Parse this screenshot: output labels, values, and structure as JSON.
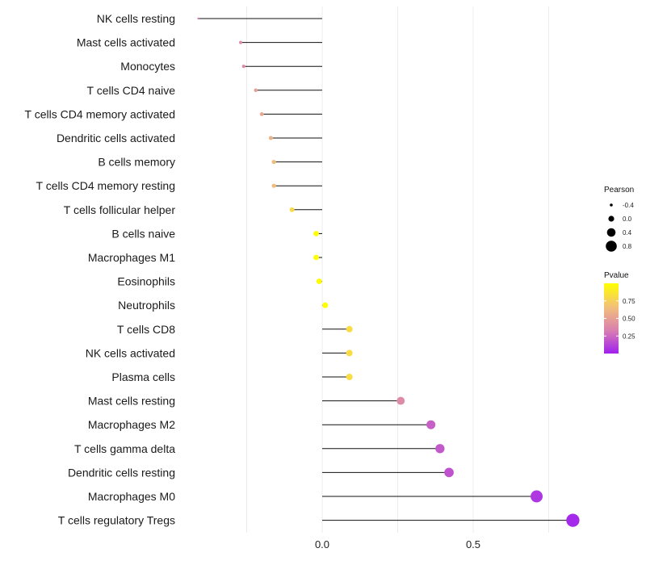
{
  "chart_data": {
    "type": "lollipop",
    "title": "",
    "xlabel": "",
    "ylabel": "",
    "xlim": [
      -0.43,
      0.85
    ],
    "x_ticks": [
      0.0,
      0.5
    ],
    "x_tick_labels": [
      "0.0",
      "0.5"
    ],
    "grid": true,
    "categories": [
      "NK cells resting",
      "Mast cells activated",
      "Monocytes",
      "T cells CD4 naive",
      "T cells CD4 memory activated",
      "Dendritic cells activated",
      "B cells memory",
      "T cells CD4 memory resting",
      "T cells follicular helper",
      "B cells naive",
      "Macrophages M1",
      "Eosinophils",
      "Neutrophils",
      "T cells CD8",
      "NK cells activated",
      "Plasma cells",
      "Mast cells resting",
      "Macrophages M2",
      "T cells gamma delta",
      "Dendritic cells resting",
      "Macrophages M0",
      "T cells regulatory  Tregs"
    ],
    "pearson": [
      -0.41,
      -0.27,
      -0.26,
      -0.22,
      -0.2,
      -0.17,
      -0.16,
      -0.16,
      -0.1,
      -0.02,
      -0.02,
      -0.01,
      0.01,
      0.09,
      0.09,
      0.09,
      0.26,
      0.36,
      0.39,
      0.42,
      0.71,
      0.83
    ],
    "pvalue": [
      0.3,
      0.4,
      0.4,
      0.5,
      0.55,
      0.6,
      0.65,
      0.65,
      0.8,
      0.99,
      0.99,
      0.99,
      0.99,
      0.82,
      0.82,
      0.82,
      0.4,
      0.22,
      0.2,
      0.18,
      0.08,
      0.03
    ],
    "size_legend": {
      "title": "Pearson",
      "values": [
        -0.4,
        0.0,
        0.4,
        0.8
      ],
      "labels": [
        "-0.4",
        "0.0",
        "0.4",
        "0.8"
      ]
    },
    "color_legend": {
      "title": "Pvalue",
      "range": [
        0.0,
        1.0
      ],
      "ticks": [
        0.25,
        0.5,
        0.75
      ],
      "tick_labels": [
        "0.25",
        "0.50",
        "0.75"
      ],
      "colors": [
        "#A020F0",
        "#D97FB0",
        "#F2BF7A",
        "#FFFF00"
      ]
    }
  }
}
